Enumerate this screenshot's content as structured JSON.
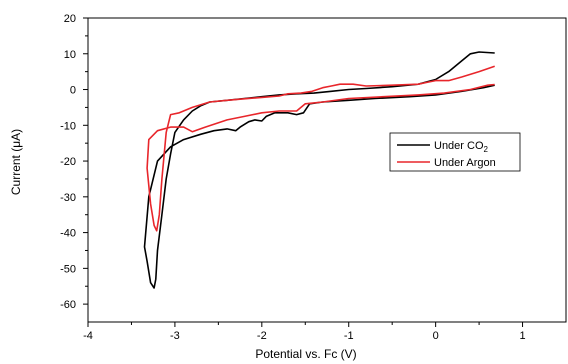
{
  "chart_data": {
    "type": "line",
    "xlabel": "Potential vs. Fc (V)",
    "ylabel": "Current (μA)",
    "xlim": [
      -4,
      1.5
    ],
    "ylim": [
      -65,
      20
    ],
    "x_ticks": [
      "-4",
      "-3",
      "-2",
      "-1",
      "0",
      "1"
    ],
    "x_tick_values": [
      -4,
      -3,
      -2,
      -1,
      0,
      1
    ],
    "y_ticks": [
      "20",
      "10",
      "0",
      "-10",
      "-20",
      "-30",
      "-40",
      "-50",
      "-60"
    ],
    "y_tick_values": [
      20,
      10,
      0,
      -10,
      -20,
      -30,
      -40,
      -50,
      -60
    ],
    "legend_position": "right",
    "series": [
      {
        "name": "Under CO2",
        "legend_main": "Under CO",
        "legend_sub": "2",
        "color": "#000000",
        "points": [
          [
            0.68,
            10.2
          ],
          [
            0.5,
            10.5
          ],
          [
            0.4,
            10.0
          ],
          [
            0.3,
            8.0
          ],
          [
            0.15,
            5.0
          ],
          [
            0.0,
            2.8
          ],
          [
            -0.2,
            1.5
          ],
          [
            -0.5,
            0.8
          ],
          [
            -0.8,
            0.3
          ],
          [
            -1.0,
            0.0
          ],
          [
            -1.2,
            -0.5
          ],
          [
            -1.4,
            -1.0
          ],
          [
            -1.6,
            -1.2
          ],
          [
            -1.8,
            -1.5
          ],
          [
            -2.0,
            -2.0
          ],
          [
            -2.2,
            -2.5
          ],
          [
            -2.4,
            -3.0
          ],
          [
            -2.6,
            -3.5
          ],
          [
            -2.7,
            -4.5
          ],
          [
            -2.8,
            -6.0
          ],
          [
            -2.9,
            -8.5
          ],
          [
            -3.0,
            -12.0
          ],
          [
            -3.05,
            -18.0
          ],
          [
            -3.1,
            -25.0
          ],
          [
            -3.15,
            -35.0
          ],
          [
            -3.2,
            -45.0
          ],
          [
            -3.22,
            -53.0
          ],
          [
            -3.24,
            -55.5
          ],
          [
            -3.28,
            -54.0
          ],
          [
            -3.32,
            -48.0
          ],
          [
            -3.35,
            -44.0
          ],
          [
            -3.3,
            -30.0
          ],
          [
            -3.2,
            -20.0
          ],
          [
            -3.05,
            -16.0
          ],
          [
            -2.9,
            -14.0
          ],
          [
            -2.7,
            -12.5
          ],
          [
            -2.55,
            -11.5
          ],
          [
            -2.4,
            -11.0
          ],
          [
            -2.3,
            -11.5
          ],
          [
            -2.25,
            -10.5
          ],
          [
            -2.15,
            -9.0
          ],
          [
            -2.08,
            -8.5
          ],
          [
            -2.0,
            -8.8
          ],
          [
            -1.95,
            -7.5
          ],
          [
            -1.85,
            -6.5
          ],
          [
            -1.7,
            -6.5
          ],
          [
            -1.6,
            -7.0
          ],
          [
            -1.52,
            -6.5
          ],
          [
            -1.45,
            -4.0
          ],
          [
            -1.3,
            -3.5
          ],
          [
            -1.0,
            -3.0
          ],
          [
            -0.7,
            -2.5
          ],
          [
            -0.3,
            -2.0
          ],
          [
            0.0,
            -1.5
          ],
          [
            0.3,
            -0.5
          ],
          [
            0.55,
            0.5
          ],
          [
            0.68,
            1.2
          ]
        ]
      },
      {
        "name": "Under Argon",
        "legend_main": "Under Argon",
        "legend_sub": "",
        "color": "#e8262b",
        "points": [
          [
            0.68,
            6.5
          ],
          [
            0.5,
            5.0
          ],
          [
            0.3,
            3.5
          ],
          [
            0.15,
            2.5
          ],
          [
            0.0,
            2.5
          ],
          [
            -0.1,
            2.0
          ],
          [
            -0.2,
            1.5
          ],
          [
            -0.5,
            1.2
          ],
          [
            -0.8,
            1.0
          ],
          [
            -0.95,
            1.5
          ],
          [
            -1.1,
            1.5
          ],
          [
            -1.2,
            1.0
          ],
          [
            -1.3,
            0.5
          ],
          [
            -1.42,
            -0.5
          ],
          [
            -1.55,
            -1.0
          ],
          [
            -1.7,
            -1.2
          ],
          [
            -1.8,
            -1.8
          ],
          [
            -2.0,
            -2.2
          ],
          [
            -2.2,
            -2.6
          ],
          [
            -2.4,
            -3.0
          ],
          [
            -2.6,
            -3.5
          ],
          [
            -2.8,
            -5.0
          ],
          [
            -2.95,
            -6.5
          ],
          [
            -3.05,
            -7.0
          ],
          [
            -3.1,
            -12.0
          ],
          [
            -3.15,
            -25.0
          ],
          [
            -3.18,
            -35.0
          ],
          [
            -3.21,
            -39.5
          ],
          [
            -3.24,
            -38.0
          ],
          [
            -3.28,
            -32.0
          ],
          [
            -3.32,
            -22.0
          ],
          [
            -3.3,
            -14.0
          ],
          [
            -3.2,
            -11.5
          ],
          [
            -3.05,
            -10.5
          ],
          [
            -2.9,
            -10.5
          ],
          [
            -2.8,
            -11.8
          ],
          [
            -2.65,
            -10.5
          ],
          [
            -2.4,
            -8.5
          ],
          [
            -2.2,
            -7.5
          ],
          [
            -2.0,
            -6.5
          ],
          [
            -1.8,
            -6.0
          ],
          [
            -1.6,
            -6.0
          ],
          [
            -1.5,
            -4.0
          ],
          [
            -1.3,
            -3.5
          ],
          [
            -1.0,
            -2.5
          ],
          [
            -0.6,
            -2.0
          ],
          [
            -0.2,
            -1.5
          ],
          [
            0.1,
            -1.0
          ],
          [
            0.4,
            0.0
          ],
          [
            0.6,
            1.2
          ],
          [
            0.68,
            1.4
          ]
        ]
      }
    ]
  }
}
